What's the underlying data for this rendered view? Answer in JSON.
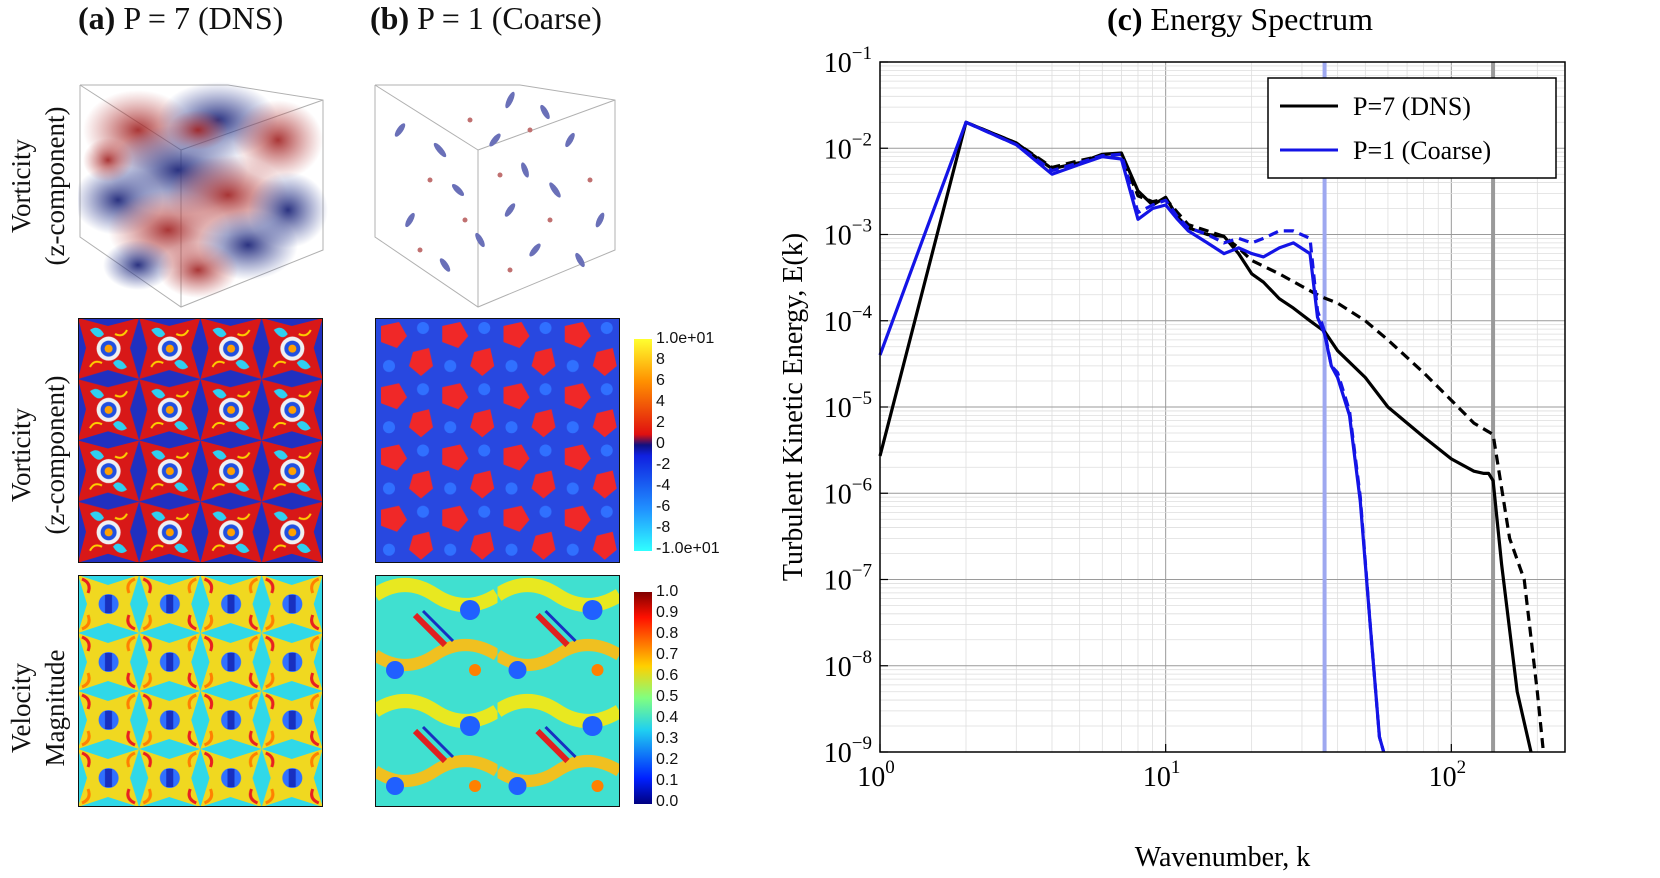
{
  "columns": {
    "a": {
      "tag": "(a)",
      "label": "P = 7 (DNS)"
    },
    "b": {
      "tag": "(b)",
      "label": "P = 1 (Coarse)"
    }
  },
  "rows": {
    "vort3d": {
      "line1": "Vorticity",
      "line2": "(z-component)"
    },
    "vort2d": {
      "line1": "Vorticity",
      "line2": "(z-component)"
    },
    "vel": {
      "line1": "Velocity",
      "line2": "Magnitude"
    }
  },
  "colorbars": {
    "vorticity": {
      "ticks": [
        "1.0e+01",
        "8",
        "6",
        "4",
        "2",
        "0",
        "-2",
        "-4",
        "-6",
        "-8",
        "-1.0e+01"
      ]
    },
    "velocity": {
      "ticks": [
        "1.0",
        "0.9",
        "0.8",
        "0.7",
        "0.6",
        "0.5",
        "0.4",
        "0.3",
        "0.2",
        "0.1",
        "0.0"
      ]
    }
  },
  "colors": {
    "dns": "#000000",
    "coarse": "#1414e6",
    "cutoff_coarse": "#9ea8f0",
    "cutoff_dns": "#9a9a9a"
  },
  "chart_data": {
    "type": "line",
    "tag": "(c)",
    "title": "Energy Spectrum",
    "xlabel": "Wavenumber, k",
    "ylabel": "Turbulent Kinetic Energy, E(k)",
    "xscale": "log",
    "yscale": "log",
    "xlim": [
      1,
      250
    ],
    "ylim": [
      1e-09,
      0.1
    ],
    "x_ticks": [
      {
        "base": "10",
        "exp": "0",
        "value": 1
      },
      {
        "base": "10",
        "exp": "1",
        "value": 10
      },
      {
        "base": "10",
        "exp": "2",
        "value": 100
      }
    ],
    "y_ticks": [
      {
        "base": "10",
        "exp": "−1",
        "value": -1
      },
      {
        "base": "10",
        "exp": "−2",
        "value": -2
      },
      {
        "base": "10",
        "exp": "−3",
        "value": -3
      },
      {
        "base": "10",
        "exp": "−4",
        "value": -4
      },
      {
        "base": "10",
        "exp": "−5",
        "value": -5
      },
      {
        "base": "10",
        "exp": "−6",
        "value": -6
      },
      {
        "base": "10",
        "exp": "−7",
        "value": -7
      },
      {
        "base": "10",
        "exp": "−8",
        "value": -8
      },
      {
        "base": "10",
        "exp": "−9",
        "value": -9
      }
    ],
    "grid": true,
    "legend": {
      "position": "top-right",
      "entries": [
        {
          "name": "P=7 (DNS)",
          "color": "#000000"
        },
        {
          "name": "P=1 (Coarse)",
          "color": "#1414e6"
        }
      ]
    },
    "vertical_lines": [
      {
        "x": 36,
        "color": "#9ea8f0"
      },
      {
        "x": 140,
        "color": "#9a9a9a"
      }
    ],
    "series": [
      {
        "name": "P=7 (DNS) solid",
        "color": "#000000",
        "style": "solid",
        "x": [
          1,
          2,
          3,
          4,
          5,
          6,
          7,
          8,
          9,
          10,
          11,
          12,
          14,
          16,
          18,
          20,
          22,
          25,
          28,
          32,
          36,
          40,
          50,
          60,
          80,
          100,
          120,
          130,
          135,
          140,
          150,
          170,
          190
        ],
        "y": [
          2.7e-06,
          0.02,
          0.0115,
          0.0058,
          0.0068,
          0.0085,
          0.0088,
          0.0032,
          0.0022,
          0.0027,
          0.0016,
          0.0012,
          0.001,
          0.00095,
          0.0006,
          0.00035,
          0.00028,
          0.00018,
          0.00014,
          0.0001,
          7.5e-05,
          4.5e-05,
          2.2e-05,
          1e-05,
          4.5e-06,
          2.5e-06,
          1.8e-06,
          1.7e-06,
          1.7e-06,
          1.4e-06,
          1.5e-07,
          5e-09,
          1e-09
        ]
      },
      {
        "name": "P=7 (DNS) dashed",
        "color": "#000000",
        "style": "dashed",
        "x": [
          2,
          3,
          4,
          5,
          6,
          7,
          8,
          9,
          10,
          11,
          12,
          14,
          16,
          18,
          20,
          25,
          30,
          35,
          40,
          50,
          60,
          80,
          100,
          120,
          140,
          160,
          180,
          200,
          210
        ],
        "y": [
          0.02,
          0.0115,
          0.006,
          0.0072,
          0.0082,
          0.0085,
          0.0028,
          0.0024,
          0.0026,
          0.0018,
          0.0013,
          0.0011,
          0.00095,
          0.0007,
          0.0005,
          0.00035,
          0.00025,
          0.00019,
          0.00016,
          0.0001,
          6e-05,
          2.5e-05,
          1.2e-05,
          6.5e-06,
          4.8e-06,
          3e-07,
          1e-07,
          5e-09,
          1e-09
        ]
      },
      {
        "name": "P=1 (Coarse) solid",
        "color": "#1414e6",
        "style": "solid",
        "x": [
          1,
          2,
          3,
          4,
          5,
          6,
          7,
          8,
          9,
          10,
          11,
          12,
          14,
          16,
          18,
          20,
          22,
          25,
          28,
          32,
          34,
          36,
          38,
          40,
          44,
          48,
          52,
          56,
          58
        ],
        "y": [
          4e-05,
          0.02,
          0.011,
          0.005,
          0.0065,
          0.008,
          0.0075,
          0.0015,
          0.002,
          0.0022,
          0.0015,
          0.0011,
          0.0008,
          0.0006,
          0.0007,
          0.0006,
          0.00055,
          0.0007,
          0.0008,
          0.0006,
          0.00011,
          7e-05,
          3e-05,
          2.2e-05,
          8e-06,
          8e-07,
          3e-08,
          1.5e-09,
          1e-09
        ]
      },
      {
        "name": "P=1 (Coarse) dashed",
        "color": "#1414e6",
        "style": "dashed",
        "x": [
          2,
          3,
          4,
          5,
          6,
          7,
          8,
          9,
          10,
          11,
          12,
          14,
          16,
          18,
          20,
          22,
          25,
          28,
          32,
          34,
          36,
          38,
          40,
          44,
          48,
          52,
          56,
          58
        ],
        "y": [
          0.02,
          0.011,
          0.0055,
          0.0068,
          0.0082,
          0.0085,
          0.0018,
          0.0022,
          0.0025,
          0.0016,
          0.0012,
          0.001,
          0.0008,
          0.0009,
          0.0008,
          0.0009,
          0.0011,
          0.0011,
          0.0009,
          0.00013,
          7.5e-05,
          3e-05,
          2.5e-05,
          9e-06,
          9e-07,
          3e-08,
          1.5e-09,
          1e-09
        ]
      }
    ]
  }
}
